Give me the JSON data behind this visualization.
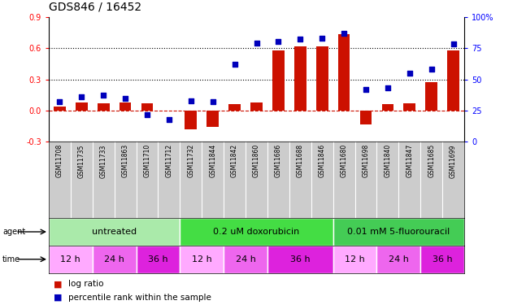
{
  "title": "GDS846 / 16452",
  "samples": [
    "GSM11708",
    "GSM11735",
    "GSM11733",
    "GSM11863",
    "GSM11710",
    "GSM11712",
    "GSM11732",
    "GSM11844",
    "GSM11842",
    "GSM11860",
    "GSM11686",
    "GSM11688",
    "GSM11846",
    "GSM11680",
    "GSM11698",
    "GSM11840",
    "GSM11847",
    "GSM11685",
    "GSM11699"
  ],
  "log_ratio": [
    0.04,
    0.08,
    0.07,
    0.08,
    0.07,
    0.0,
    -0.18,
    -0.16,
    0.06,
    0.08,
    0.58,
    0.62,
    0.62,
    0.73,
    -0.13,
    0.06,
    0.07,
    0.27,
    0.58
  ],
  "percentile": [
    32,
    36,
    37,
    35,
    22,
    18,
    33,
    32,
    62,
    79,
    80,
    82,
    83,
    87,
    42,
    43,
    55,
    58,
    78
  ],
  "agent_groups": [
    {
      "label": "untreated",
      "start": 0,
      "end": 6,
      "color": "#AAEAAA"
    },
    {
      "label": "0.2 uM doxorubicin",
      "start": 6,
      "end": 13,
      "color": "#44DD44"
    },
    {
      "label": "0.01 mM 5-fluorouracil",
      "start": 13,
      "end": 19,
      "color": "#44CC55"
    }
  ],
  "time_groups": [
    {
      "label": "12 h",
      "start": 0,
      "end": 2,
      "color": "#FFAAFF"
    },
    {
      "label": "24 h",
      "start": 2,
      "end": 4,
      "color": "#EE66EE"
    },
    {
      "label": "36 h",
      "start": 4,
      "end": 6,
      "color": "#DD22DD"
    },
    {
      "label": "12 h",
      "start": 6,
      "end": 8,
      "color": "#FFAAFF"
    },
    {
      "label": "24 h",
      "start": 8,
      "end": 10,
      "color": "#EE66EE"
    },
    {
      "label": "36 h",
      "start": 10,
      "end": 13,
      "color": "#DD22DD"
    },
    {
      "label": "12 h",
      "start": 13,
      "end": 15,
      "color": "#FFAAFF"
    },
    {
      "label": "24 h",
      "start": 15,
      "end": 17,
      "color": "#EE66EE"
    },
    {
      "label": "36 h",
      "start": 17,
      "end": 19,
      "color": "#DD22DD"
    }
  ],
  "ylim_left": [
    -0.3,
    0.9
  ],
  "ylim_right": [
    0,
    100
  ],
  "yticks_left": [
    -0.3,
    0.0,
    0.3,
    0.6,
    0.9
  ],
  "yticks_right": [
    0,
    25,
    50,
    75,
    100
  ],
  "hlines": [
    0.3,
    0.6
  ],
  "bar_color": "#CC1100",
  "dot_color": "#0000BB",
  "sample_bg": "#CCCCCC",
  "title_fontsize": 10,
  "sample_fontsize": 5.5,
  "group_fontsize": 8,
  "tick_fontsize": 7,
  "legend_fontsize": 7.5
}
